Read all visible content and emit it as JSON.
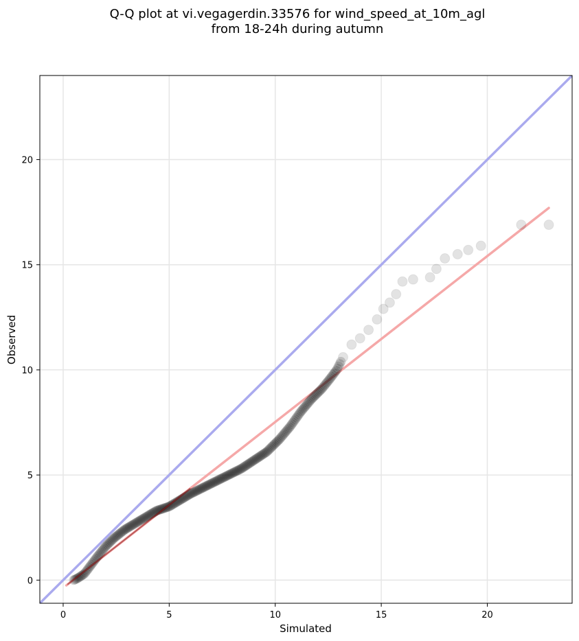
{
  "chart_data": {
    "type": "scatter",
    "title_line1": "Q-Q plot at vi.vegagerdin.33576 for wind_speed_at_10m_agl",
    "title_line2": "from 18-24h during autumn",
    "xlabel": "Simulated",
    "ylabel": "Observed",
    "xlim": [
      -1.1,
      24.0
    ],
    "ylim": [
      -1.1,
      24.0
    ],
    "xticks": [
      0,
      5,
      10,
      15,
      20
    ],
    "yticks": [
      0,
      5,
      10,
      15,
      20
    ],
    "grid": true,
    "colors": {
      "points": "#000000",
      "reference_line": "#aaaaee",
      "fit_line": "#f5a8a8",
      "fit_line_dense": "#8b1a1a"
    },
    "reference_line": {
      "x": [
        -1.1,
        24.0
      ],
      "y": [
        -1.1,
        24.0
      ]
    },
    "fit_line": {
      "x": [
        0.15,
        22.9
      ],
      "y": [
        -0.25,
        17.7
      ]
    },
    "quantiles": {
      "x": [
        0.1,
        0.5,
        0.7,
        1.0,
        1.3,
        1.6,
        2.0,
        2.4,
        2.9,
        3.4,
        3.9,
        4.4,
        5.0,
        5.5,
        6.0,
        6.6,
        7.2,
        7.8,
        8.4,
        9.0,
        9.6,
        10.2,
        10.7,
        11.2,
        11.7,
        12.2,
        12.6,
        12.9,
        13.2,
        13.6,
        14.0,
        14.4,
        14.8,
        15.1,
        15.4,
        15.7,
        16.0,
        16.5,
        17.3,
        17.6,
        18.0,
        18.6,
        19.1,
        19.7,
        21.6,
        22.9
      ],
      "y": [
        0.0,
        0.0,
        0.1,
        0.3,
        0.7,
        1.1,
        1.6,
        2.0,
        2.4,
        2.7,
        3.0,
        3.3,
        3.5,
        3.8,
        4.1,
        4.4,
        4.7,
        5.0,
        5.3,
        5.7,
        6.1,
        6.7,
        7.3,
        8.0,
        8.6,
        9.1,
        9.6,
        10.0,
        10.6,
        11.2,
        11.5,
        11.9,
        12.4,
        12.9,
        13.2,
        13.6,
        14.2,
        14.3,
        14.4,
        14.8,
        15.3,
        15.5,
        15.7,
        15.9,
        16.9,
        16.9
      ]
    }
  }
}
